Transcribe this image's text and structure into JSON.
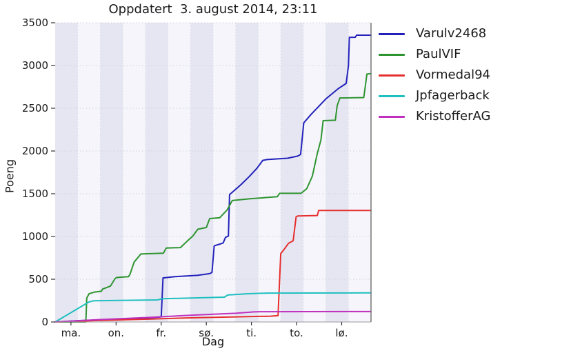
{
  "title": "Oppdatert  3. august 2014, 23:11",
  "chart_data": {
    "type": "line",
    "title": "Oppdatert  3. august 2014, 23:11",
    "xlabel": "Dag",
    "ylabel": "Poeng",
    "ylim": [
      0,
      3500
    ],
    "xlim_days": [
      0,
      14
    ],
    "grid": "dotted",
    "legend_position": "right-outside",
    "yticks": [
      0,
      500,
      1000,
      1500,
      2000,
      2500,
      3000,
      3500
    ],
    "xticks": [
      {
        "label": "ma.",
        "day": 0.7
      },
      {
        "label": "on.",
        "day": 2.7
      },
      {
        "label": "fr.",
        "day": 4.7
      },
      {
        "label": "sø.",
        "day": 6.7
      },
      {
        "label": "ti.",
        "day": 8.7
      },
      {
        "label": "to.",
        "day": 10.7
      },
      {
        "label": "lø.",
        "day": 12.7
      }
    ],
    "band_colors": {
      "dark": "#e6e6f2",
      "light": "#f5f5fb"
    },
    "grid_color_h": "#cfcfdd",
    "grid_color_v": "#dadae7",
    "spine_color_right": "#777777",
    "spine_color_bottom": "#999999",
    "series": [
      {
        "name": "Varulv2468",
        "color": "#2222bb",
        "points": [
          [
            0,
            0
          ],
          [
            1,
            15
          ],
          [
            2,
            25
          ],
          [
            3,
            35
          ],
          [
            4,
            45
          ],
          [
            4.7,
            60
          ],
          [
            4.78,
            515
          ],
          [
            5.3,
            530
          ],
          [
            6.3,
            545
          ],
          [
            6.85,
            565
          ],
          [
            6.95,
            580
          ],
          [
            7.05,
            890
          ],
          [
            7.35,
            915
          ],
          [
            7.45,
            925
          ],
          [
            7.55,
            990
          ],
          [
            7.68,
            1005
          ],
          [
            7.73,
            1490
          ],
          [
            7.95,
            1540
          ],
          [
            8.25,
            1610
          ],
          [
            8.6,
            1700
          ],
          [
            8.95,
            1800
          ],
          [
            9.2,
            1890
          ],
          [
            9.4,
            1900
          ],
          [
            10.3,
            1915
          ],
          [
            10.75,
            1940
          ],
          [
            10.88,
            1960
          ],
          [
            11.02,
            2330
          ],
          [
            11.35,
            2430
          ],
          [
            12.0,
            2610
          ],
          [
            12.55,
            2730
          ],
          [
            12.9,
            2790
          ],
          [
            13.0,
            3000
          ],
          [
            13.04,
            3330
          ],
          [
            13.3,
            3330
          ],
          [
            13.36,
            3355
          ],
          [
            14,
            3355
          ]
        ]
      },
      {
        "name": "PaulVIF",
        "color": "#2e9430",
        "points": [
          [
            0,
            0
          ],
          [
            1.36,
            0
          ],
          [
            1.4,
            280
          ],
          [
            1.5,
            330
          ],
          [
            1.75,
            350
          ],
          [
            2.05,
            360
          ],
          [
            2.1,
            385
          ],
          [
            2.45,
            420
          ],
          [
            2.65,
            505
          ],
          [
            2.72,
            520
          ],
          [
            3.25,
            530
          ],
          [
            3.32,
            560
          ],
          [
            3.5,
            700
          ],
          [
            3.8,
            795
          ],
          [
            4.8,
            805
          ],
          [
            4.92,
            865
          ],
          [
            5.55,
            870
          ],
          [
            5.85,
            945
          ],
          [
            6.1,
            1005
          ],
          [
            6.32,
            1085
          ],
          [
            6.7,
            1105
          ],
          [
            6.85,
            1210
          ],
          [
            7.3,
            1220
          ],
          [
            7.42,
            1255
          ],
          [
            7.62,
            1310
          ],
          [
            7.85,
            1420
          ],
          [
            8.6,
            1440
          ],
          [
            9.85,
            1465
          ],
          [
            9.95,
            1505
          ],
          [
            10.9,
            1505
          ],
          [
            11.15,
            1560
          ],
          [
            11.4,
            1705
          ],
          [
            11.62,
            1970
          ],
          [
            11.78,
            2130
          ],
          [
            11.88,
            2355
          ],
          [
            12.42,
            2360
          ],
          [
            12.5,
            2530
          ],
          [
            12.62,
            2620
          ],
          [
            13.68,
            2625
          ],
          [
            13.82,
            2900
          ],
          [
            14,
            2905
          ]
        ]
      },
      {
        "name": "Vormedal94",
        "color": "#e62e2e",
        "points": [
          [
            0,
            0
          ],
          [
            2,
            18
          ],
          [
            4,
            32
          ],
          [
            6,
            48
          ],
          [
            8,
            60
          ],
          [
            9.55,
            68
          ],
          [
            9.88,
            75
          ],
          [
            10.0,
            800
          ],
          [
            10.15,
            850
          ],
          [
            10.34,
            920
          ],
          [
            10.55,
            950
          ],
          [
            10.68,
            1230
          ],
          [
            10.75,
            1240
          ],
          [
            11.62,
            1245
          ],
          [
            11.68,
            1305
          ],
          [
            14,
            1305
          ]
        ]
      },
      {
        "name": "Jpfagerback",
        "color": "#1fbfbf",
        "points": [
          [
            0,
            0
          ],
          [
            1.5,
            235
          ],
          [
            1.72,
            248
          ],
          [
            4.55,
            258
          ],
          [
            4.72,
            272
          ],
          [
            6.5,
            283
          ],
          [
            7.5,
            290
          ],
          [
            7.65,
            315
          ],
          [
            8.5,
            330
          ],
          [
            9.4,
            338
          ],
          [
            14,
            340
          ]
        ]
      },
      {
        "name": "KristofferAG",
        "color": "#bf30bf",
        "points": [
          [
            0,
            0
          ],
          [
            2,
            28
          ],
          [
            4,
            52
          ],
          [
            6,
            78
          ],
          [
            7,
            90
          ],
          [
            8,
            102
          ],
          [
            8.8,
            118
          ],
          [
            9.1,
            120
          ],
          [
            14,
            122
          ]
        ]
      }
    ]
  }
}
